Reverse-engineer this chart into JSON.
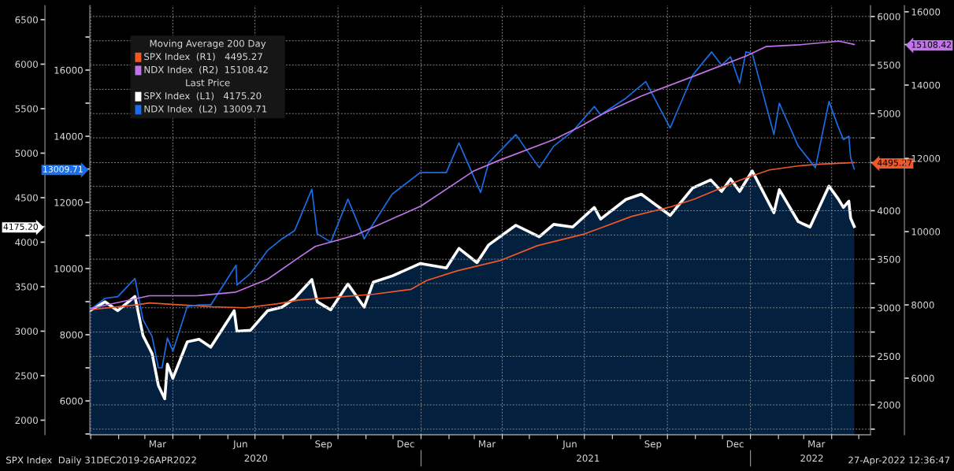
{
  "chart_data": [
    {
      "type": "line",
      "legend": "top left",
      "legend_title": "Moving Average 200 Day",
      "grid": true,
      "annotations": [
        "Last Price",
        "SPX Index  Daily 31DEC2019-26APR2022",
        "27-Apr-2022 12:36:47"
      ],
      "xlim": [
        "2019-12-31",
        "2022-05-14"
      ],
      "xticks": [
        {
          "value": "2020-01-01",
          "label": null
        },
        {
          "value": "2020-02-01",
          "label": null
        },
        {
          "value": "2020-03-01",
          "label": null
        },
        {
          "value": "2020-04-01",
          "label": null
        },
        {
          "value": "2020-05-01",
          "label": null
        },
        {
          "value": "2020-06-01",
          "label": null
        },
        {
          "value": "2020-07-01",
          "label": null
        },
        {
          "value": "2020-08-01",
          "label": null
        },
        {
          "value": "2020-09-01",
          "label": null
        },
        {
          "value": "2020-10-01",
          "label": null
        },
        {
          "value": "2020-11-01",
          "label": null
        },
        {
          "value": "2020-12-01",
          "label": null
        },
        {
          "value": "2021-01-01",
          "label": null
        },
        {
          "value": "2021-02-01",
          "label": null
        },
        {
          "value": "2021-03-01",
          "label": null
        },
        {
          "value": "2021-04-01",
          "label": null
        },
        {
          "value": "2021-05-01",
          "label": null
        },
        {
          "value": "2021-06-01",
          "label": null
        },
        {
          "value": "2021-07-01",
          "label": null
        },
        {
          "value": "2021-08-01",
          "label": null
        },
        {
          "value": "2021-09-01",
          "label": null
        },
        {
          "value": "2021-10-01",
          "label": null
        },
        {
          "value": "2021-11-01",
          "label": null
        },
        {
          "value": "2021-12-01",
          "label": null
        },
        {
          "value": "2022-01-01",
          "label": null
        },
        {
          "value": "2022-02-01",
          "label": null
        },
        {
          "value": "2022-03-01",
          "label": null
        },
        {
          "value": "2022-04-01",
          "label": null
        },
        {
          "value": "2022-05-01",
          "label": null
        },
        {
          "value": "2020-03-15",
          "label": "Mar"
        },
        {
          "value": "2020-06-15",
          "label": "Jun"
        },
        {
          "value": "2020-09-15",
          "label": "Sep"
        },
        {
          "value": "2020-12-15",
          "label": "Dec"
        },
        {
          "value": "2021-03-15",
          "label": "Mar"
        },
        {
          "value": "2021-06-15",
          "label": "Jun"
        },
        {
          "value": "2021-09-15",
          "label": "Sep"
        },
        {
          "value": "2021-12-15",
          "label": "Dec"
        },
        {
          "value": "2022-03-15",
          "label": "Mar"
        }
      ],
      "x2lim": [
        "2019-12-31",
        "2022-05-14"
      ],
      "x2ticks": [
        {
          "value": "2020-07-02",
          "label": "2020"
        },
        {
          "value": "2021-01-01",
          "label": null
        },
        {
          "value": "2021-07-05",
          "label": "2021"
        },
        {
          "value": "2022-01-01",
          "label": null
        },
        {
          "value": "2022-03-10",
          "label": "2022"
        }
      ],
      "ylim": [
        1836,
        6659
      ],
      "yticks": [
        2000,
        2500,
        3000,
        3500,
        4000,
        {
          "value": 4175.2,
          "label": "4175.20"
        },
        4500,
        5000,
        5500,
        6000,
        6500
      ],
      "y2lim": [
        1692,
        6113
      ],
      "y2ticks": [
        {
          "value": 1750,
          "label": null
        },
        2000,
        {
          "value": 2250,
          "label": null
        },
        2500,
        {
          "value": 2750,
          "label": null
        },
        3000,
        {
          "value": 3250,
          "label": null
        },
        3500,
        {
          "value": 3750,
          "label": null
        },
        4000,
        {
          "value": 4250,
          "label": null
        },
        {
          "value": 4495.27,
          "label": "4495.27"
        },
        {
          "value": 4750,
          "label": null
        },
        5000,
        {
          "value": 5250,
          "label": null
        },
        5500,
        {
          "value": 5750,
          "label": null
        },
        6000
      ],
      "series": [
        {
          "name": "SPX Index  (R1)   4495.27",
          "color": "#f0582a",
          "axis": "y2",
          "x": [
            "2019-12-31",
            "2020-02-20",
            "2020-03-06",
            "2020-04-10",
            "2020-05-15",
            "2020-06-20",
            "2020-07-25",
            "2020-08-19",
            "2020-10-01",
            "2020-11-10",
            "2020-12-21",
            "2021-01-07",
            "2021-02-10",
            "2021-03-31",
            "2021-05-10",
            "2021-07-01",
            "2021-08-22",
            "2021-10-05",
            "2021-10-31",
            "2021-12-22",
            "2022-01-22",
            "2022-02-22",
            "2022-03-20",
            "2022-04-26"
          ],
          "values": [
            2980,
            3030,
            3050,
            3030,
            3010,
            3000,
            3040,
            3080,
            3110,
            3140,
            3190,
            3280,
            3380,
            3490,
            3640,
            3760,
            3940,
            4040,
            4120,
            4320,
            4420,
            4460,
            4480,
            4495.27
          ]
        },
        {
          "name": "SPX Index  (L1)   4175.20",
          "color": "#ffffff",
          "type": "area",
          "x": [
            "2019-12-31",
            "2020-01-17",
            "2020-01-31",
            "2020-02-19",
            "2020-02-28",
            "2020-03-09",
            "2020-03-16",
            "2020-03-23",
            "2020-03-26",
            "2020-04-01",
            "2020-04-17",
            "2020-04-30",
            "2020-05-13",
            "2020-06-08",
            "2020-06-11",
            "2020-06-26",
            "2020-07-15",
            "2020-07-31",
            "2020-08-14",
            "2020-09-02",
            "2020-09-08",
            "2020-09-23",
            "2020-10-12",
            "2020-10-30",
            "2020-11-09",
            "2020-11-30",
            "2020-12-31",
            "2021-01-29",
            "2021-02-12",
            "2021-03-04",
            "2021-03-17",
            "2021-04-16",
            "2021-05-12",
            "2021-05-28",
            "2021-06-18",
            "2021-07-12",
            "2021-07-19",
            "2021-08-16",
            "2021-09-02",
            "2021-10-04",
            "2021-10-29",
            "2021-11-18",
            "2021-11-30",
            "2021-12-10",
            "2021-12-20",
            "2022-01-03",
            "2022-01-27",
            "2022-02-02",
            "2022-02-23",
            "2022-03-08",
            "2022-03-29",
            "2022-04-08",
            "2022-04-14",
            "2022-04-20",
            "2022-04-22",
            "2022-04-26"
          ],
          "values": [
            3230,
            3330,
            3230,
            3390,
            2950,
            2750,
            2390,
            2240,
            2630,
            2470,
            2880,
            2910,
            2820,
            3230,
            3000,
            3010,
            3230,
            3270,
            3370,
            3580,
            3330,
            3240,
            3530,
            3270,
            3550,
            3620,
            3760,
            3710,
            3930,
            3770,
            3970,
            4190,
            4060,
            4200,
            4170,
            4390,
            4260,
            4480,
            4540,
            4300,
            4610,
            4700,
            4570,
            4710,
            4570,
            4800,
            4330,
            4590,
            4230,
            4170,
            4630,
            4490,
            4390,
            4460,
            4270,
            4175.2
          ]
        }
      ]
    },
    {
      "type": "line",
      "legend": "top left",
      "xlim": [
        "2019-12-31",
        "2022-05-14"
      ],
      "ylim": [
        4976,
        17952
      ],
      "yticks": [
        {
          "value": 5000,
          "label": null
        },
        6000,
        {
          "value": 7000,
          "label": null
        },
        8000,
        {
          "value": 9000,
          "label": null
        },
        10000,
        {
          "value": 11000,
          "label": null
        },
        12000,
        {
          "value": 13009.71,
          "label": "13009.71"
        },
        14000,
        {
          "value": 15000,
          "label": null
        },
        16000,
        {
          "value": 17000,
          "label": null
        }
      ],
      "y2lim": [
        4455,
        16172
      ],
      "y2ticks": [
        6000,
        8000,
        10000,
        12000,
        14000,
        {
          "value": 15108.42,
          "label": "15108.42"
        },
        16000
      ],
      "series": [
        {
          "name": "NDX Index  (R2)  15108.42",
          "color": "#c275ea",
          "axis": "y2",
          "x": [
            "2019-12-31",
            "2020-03-06",
            "2020-04-28",
            "2020-06-10",
            "2020-07-15",
            "2020-08-19",
            "2020-09-06",
            "2020-10-20",
            "2021-01-01",
            "2021-02-28",
            "2021-03-29",
            "2021-05-27",
            "2021-06-25",
            "2021-07-24",
            "2021-09-02",
            "2021-10-31",
            "2021-12-28",
            "2022-01-18",
            "2022-02-24",
            "2022-04-09",
            "2022-04-26"
          ],
          "values": [
            7900,
            8250,
            8250,
            8350,
            8700,
            9300,
            9600,
            9900,
            10700,
            11650,
            11950,
            12500,
            12850,
            13250,
            13700,
            14250,
            14800,
            15050,
            15100,
            15200,
            15108.42
          ]
        },
        {
          "name": "NDX Index  (L2)  13009.71",
          "color": "#1a6ee8",
          "x": [
            "2019-12-31",
            "2020-01-17",
            "2020-01-31",
            "2020-02-19",
            "2020-02-28",
            "2020-03-09",
            "2020-03-16",
            "2020-03-20",
            "2020-03-26",
            "2020-04-01",
            "2020-04-17",
            "2020-04-30",
            "2020-05-13",
            "2020-06-10",
            "2020-06-11",
            "2020-06-26",
            "2020-07-15",
            "2020-07-31",
            "2020-08-14",
            "2020-09-02",
            "2020-09-08",
            "2020-09-23",
            "2020-10-12",
            "2020-10-30",
            "2020-11-09",
            "2020-11-30",
            "2020-12-31",
            "2021-01-29",
            "2021-02-12",
            "2021-03-08",
            "2021-03-17",
            "2021-04-16",
            "2021-05-12",
            "2021-05-28",
            "2021-06-18",
            "2021-07-12",
            "2021-07-19",
            "2021-08-16",
            "2021-09-07",
            "2021-10-04",
            "2021-10-29",
            "2021-11-19",
            "2021-11-30",
            "2021-12-10",
            "2021-12-20",
            "2021-12-27",
            "2022-01-03",
            "2022-01-27",
            "2022-02-02",
            "2022-02-23",
            "2022-03-14",
            "2022-03-29",
            "2022-04-08",
            "2022-04-14",
            "2022-04-20",
            "2022-04-22",
            "2022-04-26"
          ],
          "values": [
            8750,
            9100,
            9150,
            9700,
            8450,
            7950,
            7000,
            7000,
            7900,
            7500,
            8850,
            8900,
            8900,
            10100,
            9500,
            9850,
            10550,
            10900,
            11150,
            12400,
            11050,
            10800,
            12100,
            10900,
            11350,
            12250,
            12900,
            12900,
            13800,
            12300,
            13200,
            14050,
            13050,
            13700,
            14150,
            14900,
            14650,
            15150,
            15650,
            14250,
            15850,
            16550,
            16150,
            16400,
            15600,
            16550,
            16500,
            14050,
            15000,
            13700,
            13050,
            15050,
            14300,
            13900,
            14000,
            13350,
            13009.71
          ]
        }
      ]
    }
  ]
}
